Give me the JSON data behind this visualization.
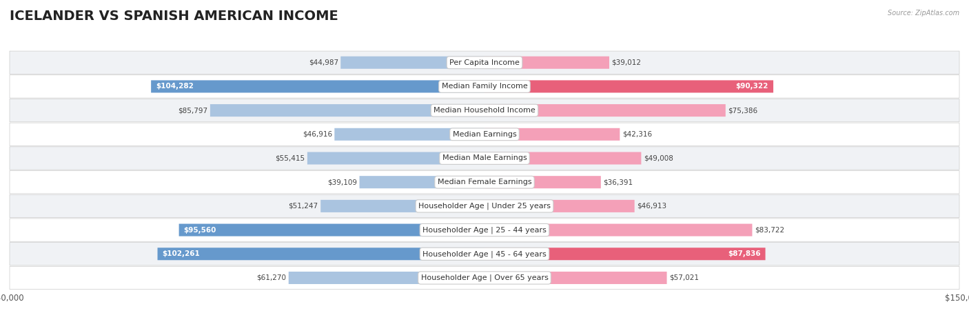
{
  "title": "ICELANDER VS SPANISH AMERICAN INCOME",
  "source": "Source: ZipAtlas.com",
  "categories": [
    "Per Capita Income",
    "Median Family Income",
    "Median Household Income",
    "Median Earnings",
    "Median Male Earnings",
    "Median Female Earnings",
    "Householder Age | Under 25 years",
    "Householder Age | 25 - 44 years",
    "Householder Age | 45 - 64 years",
    "Householder Age | Over 65 years"
  ],
  "icelander_values": [
    44987,
    104282,
    85797,
    46916,
    55415,
    39109,
    51247,
    95560,
    102261,
    61270
  ],
  "spanish_values": [
    39012,
    90322,
    75386,
    42316,
    49008,
    36391,
    46913,
    83722,
    87836,
    57021
  ],
  "max_val": 150000,
  "icelander_color_light": "#aac4e0",
  "icelander_color_dark": "#6699cc",
  "spanish_color_light": "#f4a0b8",
  "spanish_color_dark": "#e8607a",
  "bg_color": "#ffffff",
  "row_bg_light": "#f0f2f5",
  "row_bg_white": "#ffffff",
  "title_fontsize": 14,
  "label_fontsize": 8,
  "value_fontsize": 7.5,
  "legend_fontsize": 9
}
